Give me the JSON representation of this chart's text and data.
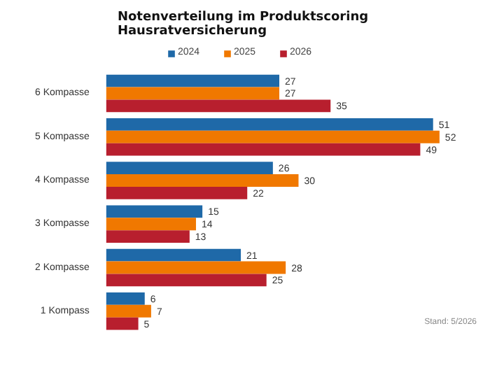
{
  "chart_data": {
    "type": "bar",
    "orientation": "horizontal",
    "title": "Notenverteilung im Produktscoring\nHausratversicherung",
    "categories": [
      "6 Kompasse",
      "5 Kompasse",
      "4 Kompasse",
      "3 Kompasse",
      "2 Kompasse",
      "1 Kompass"
    ],
    "series": [
      {
        "name": "2024",
        "color": "#1f69a8",
        "values": [
          27,
          51,
          26,
          15,
          21,
          6
        ]
      },
      {
        "name": "2025",
        "color": "#f07800",
        "values": [
          27,
          52,
          30,
          14,
          28,
          7
        ]
      },
      {
        "name": "2026",
        "color": "#b81f2e",
        "values": [
          35,
          49,
          22,
          13,
          25,
          5
        ]
      }
    ],
    "data_labels": true,
    "legend": "top",
    "grid": false,
    "annotations": [
      "Stand: 5/2026"
    ]
  }
}
